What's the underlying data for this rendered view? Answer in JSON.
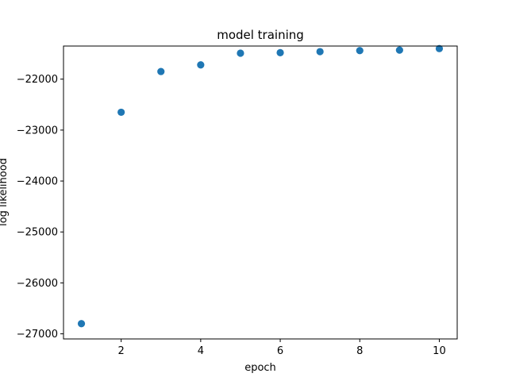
{
  "chart_data": {
    "type": "scatter",
    "title": "model training",
    "xlabel": "epoch",
    "ylabel": "log likelihood",
    "x": [
      1,
      2,
      3,
      4,
      5,
      6,
      7,
      8,
      9,
      10
    ],
    "y": [
      -26800,
      -22650,
      -21850,
      -21720,
      -21490,
      -21480,
      -21460,
      -21440,
      -21430,
      -21400
    ],
    "xlim": [
      0.55,
      10.45
    ],
    "ylim": [
      -27100,
      -21350
    ],
    "xticks": [
      2,
      4,
      6,
      8,
      10
    ],
    "xtick_labels": [
      "2",
      "4",
      "6",
      "8",
      "10"
    ],
    "yticks": [
      -27000,
      -26000,
      -25000,
      -24000,
      -23000,
      -22000
    ],
    "ytick_labels": [
      "−27000",
      "−26000",
      "−25000",
      "−24000",
      "−23000",
      "−22000"
    ],
    "grid": false,
    "marker_color": "#1f77b4"
  }
}
